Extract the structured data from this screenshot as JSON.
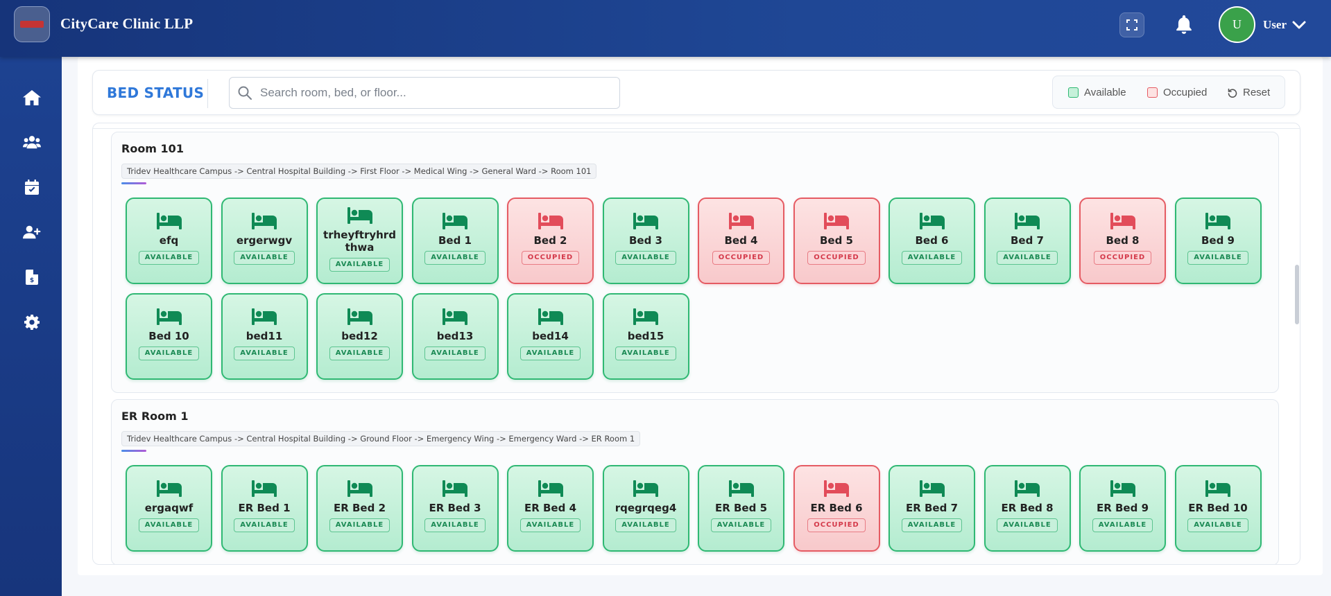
{
  "header": {
    "brand": "CityCare Clinic LLP",
    "avatar_initial": "U",
    "user_name": "User"
  },
  "status_bar": {
    "title": "BED STATUS",
    "search_placeholder": "Search room, bed, or floor...",
    "legend_available": "Available",
    "legend_occupied": "Occupied",
    "reset_label": "Reset"
  },
  "colors": {
    "available": "#2fb873",
    "occupied": "#e55b63",
    "accent": "#2f78d9"
  },
  "rooms": [
    {
      "title": "Room 101",
      "path": "Tridev Healthcare Campus -> Central Hospital Building -> First Floor -> Medical Wing -> General Ward -> Room 101",
      "beds": [
        {
          "name": "efq",
          "status": "AVAILABLE"
        },
        {
          "name": "ergerwgv",
          "status": "AVAILABLE"
        },
        {
          "name": "trheyftryhrdthwa",
          "status": "AVAILABLE"
        },
        {
          "name": "Bed 1",
          "status": "AVAILABLE"
        },
        {
          "name": "Bed 2",
          "status": "OCCUPIED"
        },
        {
          "name": "Bed 3",
          "status": "AVAILABLE"
        },
        {
          "name": "Bed 4",
          "status": "OCCUPIED"
        },
        {
          "name": "Bed 5",
          "status": "OCCUPIED"
        },
        {
          "name": "Bed 6",
          "status": "AVAILABLE"
        },
        {
          "name": "Bed 7",
          "status": "AVAILABLE"
        },
        {
          "name": "Bed 8",
          "status": "OCCUPIED"
        },
        {
          "name": "Bed 9",
          "status": "AVAILABLE"
        },
        {
          "name": "Bed 10",
          "status": "AVAILABLE"
        },
        {
          "name": "bed11",
          "status": "AVAILABLE"
        },
        {
          "name": "bed12",
          "status": "AVAILABLE"
        },
        {
          "name": "bed13",
          "status": "AVAILABLE"
        },
        {
          "name": "bed14",
          "status": "AVAILABLE"
        },
        {
          "name": "bed15",
          "status": "AVAILABLE"
        }
      ]
    },
    {
      "title": "ER Room 1",
      "path": "Tridev Healthcare Campus -> Central Hospital Building -> Ground Floor -> Emergency Wing -> Emergency Ward -> ER Room 1",
      "beds": [
        {
          "name": "ergaqwf",
          "status": "AVAILABLE"
        },
        {
          "name": "ER Bed 1",
          "status": "AVAILABLE"
        },
        {
          "name": "ER Bed 2",
          "status": "AVAILABLE"
        },
        {
          "name": "ER Bed 3",
          "status": "AVAILABLE"
        },
        {
          "name": "ER Bed 4",
          "status": "AVAILABLE"
        },
        {
          "name": "rqegrqeg4",
          "status": "AVAILABLE"
        },
        {
          "name": "ER Bed 5",
          "status": "AVAILABLE"
        },
        {
          "name": "ER Bed 6",
          "status": "OCCUPIED"
        },
        {
          "name": "ER Bed 7",
          "status": "AVAILABLE"
        },
        {
          "name": "ER Bed 8",
          "status": "AVAILABLE"
        },
        {
          "name": "ER Bed 9",
          "status": "AVAILABLE"
        },
        {
          "name": "ER Bed 10",
          "status": "AVAILABLE"
        }
      ]
    }
  ],
  "sidebar": {
    "items": [
      {
        "icon": "home-icon"
      },
      {
        "icon": "users-icon"
      },
      {
        "icon": "calendar-check-icon"
      },
      {
        "icon": "user-plus-icon"
      },
      {
        "icon": "invoice-icon"
      },
      {
        "icon": "gear-icon"
      }
    ]
  }
}
